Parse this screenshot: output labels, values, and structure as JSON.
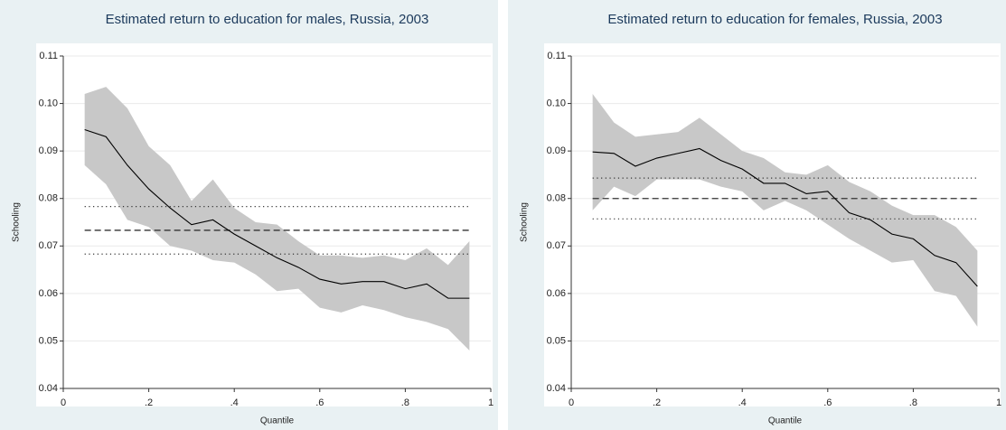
{
  "chart_data": [
    {
      "type": "band-line",
      "title": "Estimated return to education for males, Russia, 2003",
      "x_label": "Quantile",
      "y_label": "Schooling",
      "x": [
        0.05,
        0.1,
        0.15,
        0.2,
        0.25,
        0.3,
        0.35,
        0.4,
        0.45,
        0.5,
        0.55,
        0.6,
        0.65,
        0.7,
        0.75,
        0.8,
        0.85,
        0.9,
        0.95
      ],
      "series": [
        {
          "color": "#000000",
          "values": [
            0.0945,
            0.093,
            0.087,
            0.082,
            0.078,
            0.0745,
            0.0755,
            0.0725,
            0.07,
            0.0675,
            0.0655,
            0.063,
            0.062,
            0.0625,
            0.0625,
            0.061,
            0.062,
            0.059,
            0.059
          ]
        }
      ],
      "band": {
        "color": "#c8c8c8",
        "upper": [
          0.102,
          0.1035,
          0.099,
          0.091,
          0.087,
          0.0795,
          0.084,
          0.078,
          0.075,
          0.0745,
          0.071,
          0.068,
          0.068,
          0.0675,
          0.068,
          0.067,
          0.0695,
          0.066,
          0.071
        ],
        "lower": [
          0.087,
          0.083,
          0.0755,
          0.074,
          0.07,
          0.069,
          0.067,
          0.0665,
          0.064,
          0.0605,
          0.061,
          0.057,
          0.056,
          0.0575,
          0.0565,
          0.055,
          0.054,
          0.0525,
          0.048
        ]
      },
      "hlines": [
        {
          "value": 0.0733,
          "style": "dashed"
        },
        {
          "value": 0.0783,
          "style": "dotted"
        },
        {
          "value": 0.0683,
          "style": "dotted"
        }
      ],
      "xlim": [
        0,
        1
      ],
      "ylim": [
        0.04,
        0.11
      ],
      "xticks": [
        0,
        {
          "value": 0.2,
          "label": ".2"
        },
        {
          "value": 0.4,
          "label": ".4"
        },
        {
          "value": 0.6,
          "label": ".6"
        },
        {
          "value": 0.8,
          "label": ".8"
        },
        1
      ],
      "yticks": [
        0.04,
        0.05,
        0.06,
        0.07,
        0.08,
        0.09,
        {
          "value": 0.1,
          "label": "0.10"
        },
        0.11
      ],
      "grid": true
    },
    {
      "type": "band-line",
      "title": "Estimated return to education for females, Russia, 2003",
      "x_label": "Quantile",
      "y_label": "Schooling",
      "x": [
        0.05,
        0.1,
        0.15,
        0.2,
        0.25,
        0.3,
        0.35,
        0.4,
        0.45,
        0.5,
        0.55,
        0.6,
        0.65,
        0.7,
        0.75,
        0.8,
        0.85,
        0.9,
        0.95
      ],
      "series": [
        {
          "color": "#000000",
          "values": [
            0.0898,
            0.0895,
            0.0868,
            0.0885,
            0.0895,
            0.0905,
            0.088,
            0.0862,
            0.0832,
            0.0832,
            0.081,
            0.0815,
            0.077,
            0.0755,
            0.0725,
            0.0715,
            0.068,
            0.0665,
            0.0615
          ]
        }
      ],
      "band": {
        "color": "#c8c8c8",
        "upper": [
          0.102,
          0.096,
          0.093,
          0.0935,
          0.094,
          0.097,
          0.0935,
          0.09,
          0.0885,
          0.0855,
          0.085,
          0.087,
          0.0835,
          0.0815,
          0.0785,
          0.0765,
          0.0765,
          0.074,
          0.069
        ],
        "lower": [
          0.0775,
          0.0825,
          0.0805,
          0.084,
          0.084,
          0.084,
          0.0825,
          0.0815,
          0.0775,
          0.0795,
          0.0775,
          0.0745,
          0.0715,
          0.069,
          0.0665,
          0.067,
          0.0605,
          0.0595,
          0.053
        ]
      },
      "hlines": [
        {
          "value": 0.08,
          "style": "dashed"
        },
        {
          "value": 0.0843,
          "style": "dotted"
        },
        {
          "value": 0.0757,
          "style": "dotted"
        }
      ],
      "xlim": [
        0,
        1
      ],
      "ylim": [
        0.04,
        0.11
      ],
      "xticks": [
        0,
        {
          "value": 0.2,
          "label": ".2"
        },
        {
          "value": 0.4,
          "label": ".4"
        },
        {
          "value": 0.6,
          "label": ".6"
        },
        {
          "value": 0.8,
          "label": ".8"
        },
        1
      ],
      "yticks": [
        0.04,
        0.05,
        0.06,
        0.07,
        0.08,
        0.09,
        {
          "value": 0.1,
          "label": "0.10"
        },
        0.11
      ],
      "grid": true
    }
  ]
}
